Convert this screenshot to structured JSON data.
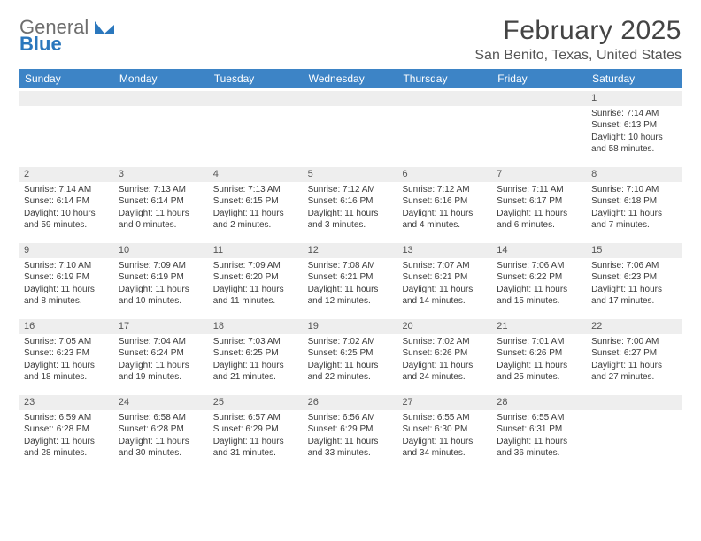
{
  "logo": {
    "word1": "General",
    "word2": "Blue"
  },
  "title": "February 2025",
  "location": "San Benito, Texas, United States",
  "colors": {
    "header_bg": "#3d84c6",
    "header_text": "#ffffff",
    "daynum_bg": "#eeeeee",
    "rule": "#9aaabb",
    "logo_gray": "#6e6e6e",
    "logo_blue": "#2a77bd"
  },
  "weekdays": [
    "Sunday",
    "Monday",
    "Tuesday",
    "Wednesday",
    "Thursday",
    "Friday",
    "Saturday"
  ],
  "weeks": [
    [
      {
        "n": "",
        "sr": "",
        "ss": "",
        "dl": ""
      },
      {
        "n": "",
        "sr": "",
        "ss": "",
        "dl": ""
      },
      {
        "n": "",
        "sr": "",
        "ss": "",
        "dl": ""
      },
      {
        "n": "",
        "sr": "",
        "ss": "",
        "dl": ""
      },
      {
        "n": "",
        "sr": "",
        "ss": "",
        "dl": ""
      },
      {
        "n": "",
        "sr": "",
        "ss": "",
        "dl": ""
      },
      {
        "n": "1",
        "sr": "Sunrise: 7:14 AM",
        "ss": "Sunset: 6:13 PM",
        "dl": "Daylight: 10 hours and 58 minutes."
      }
    ],
    [
      {
        "n": "2",
        "sr": "Sunrise: 7:14 AM",
        "ss": "Sunset: 6:14 PM",
        "dl": "Daylight: 10 hours and 59 minutes."
      },
      {
        "n": "3",
        "sr": "Sunrise: 7:13 AM",
        "ss": "Sunset: 6:14 PM",
        "dl": "Daylight: 11 hours and 0 minutes."
      },
      {
        "n": "4",
        "sr": "Sunrise: 7:13 AM",
        "ss": "Sunset: 6:15 PM",
        "dl": "Daylight: 11 hours and 2 minutes."
      },
      {
        "n": "5",
        "sr": "Sunrise: 7:12 AM",
        "ss": "Sunset: 6:16 PM",
        "dl": "Daylight: 11 hours and 3 minutes."
      },
      {
        "n": "6",
        "sr": "Sunrise: 7:12 AM",
        "ss": "Sunset: 6:16 PM",
        "dl": "Daylight: 11 hours and 4 minutes."
      },
      {
        "n": "7",
        "sr": "Sunrise: 7:11 AM",
        "ss": "Sunset: 6:17 PM",
        "dl": "Daylight: 11 hours and 6 minutes."
      },
      {
        "n": "8",
        "sr": "Sunrise: 7:10 AM",
        "ss": "Sunset: 6:18 PM",
        "dl": "Daylight: 11 hours and 7 minutes."
      }
    ],
    [
      {
        "n": "9",
        "sr": "Sunrise: 7:10 AM",
        "ss": "Sunset: 6:19 PM",
        "dl": "Daylight: 11 hours and 8 minutes."
      },
      {
        "n": "10",
        "sr": "Sunrise: 7:09 AM",
        "ss": "Sunset: 6:19 PM",
        "dl": "Daylight: 11 hours and 10 minutes."
      },
      {
        "n": "11",
        "sr": "Sunrise: 7:09 AM",
        "ss": "Sunset: 6:20 PM",
        "dl": "Daylight: 11 hours and 11 minutes."
      },
      {
        "n": "12",
        "sr": "Sunrise: 7:08 AM",
        "ss": "Sunset: 6:21 PM",
        "dl": "Daylight: 11 hours and 12 minutes."
      },
      {
        "n": "13",
        "sr": "Sunrise: 7:07 AM",
        "ss": "Sunset: 6:21 PM",
        "dl": "Daylight: 11 hours and 14 minutes."
      },
      {
        "n": "14",
        "sr": "Sunrise: 7:06 AM",
        "ss": "Sunset: 6:22 PM",
        "dl": "Daylight: 11 hours and 15 minutes."
      },
      {
        "n": "15",
        "sr": "Sunrise: 7:06 AM",
        "ss": "Sunset: 6:23 PM",
        "dl": "Daylight: 11 hours and 17 minutes."
      }
    ],
    [
      {
        "n": "16",
        "sr": "Sunrise: 7:05 AM",
        "ss": "Sunset: 6:23 PM",
        "dl": "Daylight: 11 hours and 18 minutes."
      },
      {
        "n": "17",
        "sr": "Sunrise: 7:04 AM",
        "ss": "Sunset: 6:24 PM",
        "dl": "Daylight: 11 hours and 19 minutes."
      },
      {
        "n": "18",
        "sr": "Sunrise: 7:03 AM",
        "ss": "Sunset: 6:25 PM",
        "dl": "Daylight: 11 hours and 21 minutes."
      },
      {
        "n": "19",
        "sr": "Sunrise: 7:02 AM",
        "ss": "Sunset: 6:25 PM",
        "dl": "Daylight: 11 hours and 22 minutes."
      },
      {
        "n": "20",
        "sr": "Sunrise: 7:02 AM",
        "ss": "Sunset: 6:26 PM",
        "dl": "Daylight: 11 hours and 24 minutes."
      },
      {
        "n": "21",
        "sr": "Sunrise: 7:01 AM",
        "ss": "Sunset: 6:26 PM",
        "dl": "Daylight: 11 hours and 25 minutes."
      },
      {
        "n": "22",
        "sr": "Sunrise: 7:00 AM",
        "ss": "Sunset: 6:27 PM",
        "dl": "Daylight: 11 hours and 27 minutes."
      }
    ],
    [
      {
        "n": "23",
        "sr": "Sunrise: 6:59 AM",
        "ss": "Sunset: 6:28 PM",
        "dl": "Daylight: 11 hours and 28 minutes."
      },
      {
        "n": "24",
        "sr": "Sunrise: 6:58 AM",
        "ss": "Sunset: 6:28 PM",
        "dl": "Daylight: 11 hours and 30 minutes."
      },
      {
        "n": "25",
        "sr": "Sunrise: 6:57 AM",
        "ss": "Sunset: 6:29 PM",
        "dl": "Daylight: 11 hours and 31 minutes."
      },
      {
        "n": "26",
        "sr": "Sunrise: 6:56 AM",
        "ss": "Sunset: 6:29 PM",
        "dl": "Daylight: 11 hours and 33 minutes."
      },
      {
        "n": "27",
        "sr": "Sunrise: 6:55 AM",
        "ss": "Sunset: 6:30 PM",
        "dl": "Daylight: 11 hours and 34 minutes."
      },
      {
        "n": "28",
        "sr": "Sunrise: 6:55 AM",
        "ss": "Sunset: 6:31 PM",
        "dl": "Daylight: 11 hours and 36 minutes."
      },
      {
        "n": "",
        "sr": "",
        "ss": "",
        "dl": ""
      }
    ]
  ]
}
